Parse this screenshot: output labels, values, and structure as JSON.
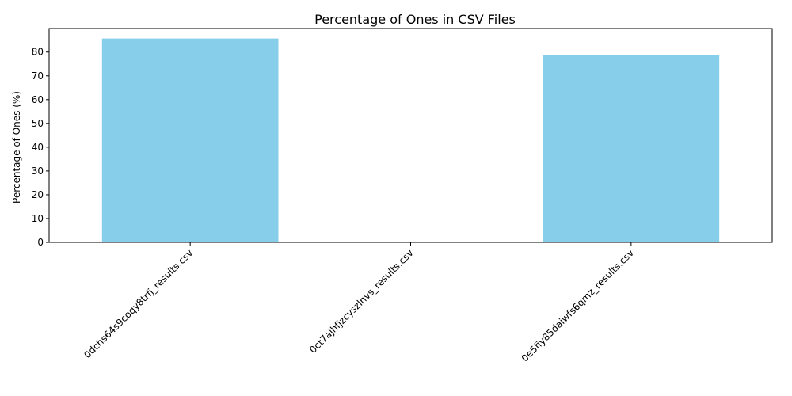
{
  "chart_data": {
    "type": "bar",
    "title": "Percentage of Ones in CSV Files",
    "xlabel": "",
    "ylabel": "Percentage of Ones (%)",
    "categories": [
      "0dchs64s9coqy8trfj_results.csv",
      "0ct7ajhfjzcyszlnvs_results.csv",
      "0e5fiy85daiwfs6qmz_results.csv"
    ],
    "values": [
      85.7,
      0,
      78.6
    ],
    "ylim": [
      0,
      89.9
    ],
    "yticks": [
      0,
      10,
      20,
      30,
      40,
      50,
      60,
      70,
      80
    ],
    "bar_color": "#87ceeb",
    "grid": false,
    "legend": "none"
  }
}
